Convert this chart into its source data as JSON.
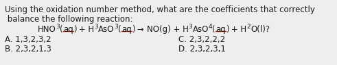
{
  "bg_color": "#eeeeee",
  "text_color": "#1a1a1a",
  "underline_color": "#cc2200",
  "line1": "Using the oxidation number method, what are the coefficients that correctly",
  "line2": " balance the following reaction:",
  "eq_indent": "        ",
  "eq_part1": "HNO",
  "eq_sub1": "3",
  "eq_p1b": "(aq) + H",
  "eq_sub2": "3",
  "eq_p2b": "AsO",
  "eq_sub3": "3",
  "eq_p3b": "(aq)",
  "eq_arrow": " → ",
  "eq_part2": " NO(g) + H",
  "eq_sub4": "3",
  "eq_p4b": "AsO",
  "eq_sub5": "4",
  "eq_p5b": "(aq) + H",
  "eq_sub6": "2",
  "eq_p6b": "O(l)?",
  "optA_label": "A. 1,3,2,3,2",
  "optB_label": "B. 2,3,2,1,3",
  "optC_label": "C. 2,3,2,2,2",
  "optD_label": "D. 2,3,2,3,1",
  "fontsize": 8.5,
  "sub_fontsize": 6.5
}
